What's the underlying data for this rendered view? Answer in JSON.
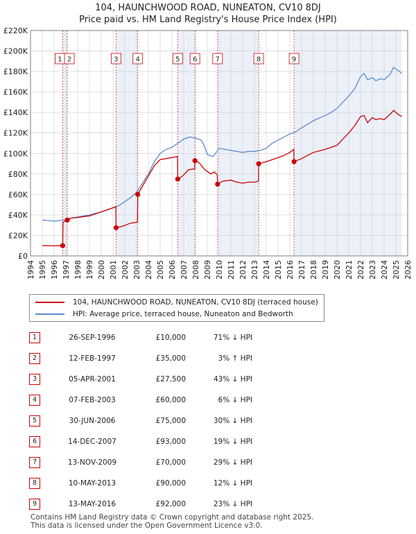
{
  "title": "104, HAUNCHWOOD ROAD, NUNEATON, CV10 8DJ",
  "subtitle": "Price paid vs. HM Land Registry's House Price Index (HPI)",
  "colors": {
    "red": "#cc0000",
    "blue": "#5b8bd0",
    "band": "#dde6f5",
    "grid": "#cccccc"
  },
  "chart_data": {
    "type": "line",
    "xlim": [
      1994,
      2026
    ],
    "ylim": [
      0,
      220000
    ],
    "x_ticks": [
      "1994",
      "1995",
      "1996",
      "1997",
      "1998",
      "1999",
      "2000",
      "2001",
      "2002",
      "2003",
      "2004",
      "2005",
      "2006",
      "2007",
      "2008",
      "2009",
      "2010",
      "2011",
      "2012",
      "2013",
      "2014",
      "2015",
      "2016",
      "2017",
      "2018",
      "2019",
      "2020",
      "2021",
      "2022",
      "2023",
      "2024",
      "2025",
      "2026"
    ],
    "y_ticks": [
      {
        "value": 0,
        "label": "£0"
      },
      {
        "value": 20000,
        "label": "£20K"
      },
      {
        "value": 40000,
        "label": "£40K"
      },
      {
        "value": 60000,
        "label": "£60K"
      },
      {
        "value": 80000,
        "label": "£80K"
      },
      {
        "value": 100000,
        "label": "£100K"
      },
      {
        "value": 120000,
        "label": "£120K"
      },
      {
        "value": 140000,
        "label": "£140K"
      },
      {
        "value": 160000,
        "label": "£160K"
      },
      {
        "value": 180000,
        "label": "£180K"
      },
      {
        "value": 200000,
        "label": "£200K"
      },
      {
        "value": 220000,
        "label": "£220K"
      }
    ],
    "shaded_ranges": [
      [
        1996.73,
        1997.12
      ],
      [
        2001.26,
        2003.1
      ],
      [
        2006.49,
        2007.95
      ],
      [
        2009.87,
        2013.36
      ],
      [
        2016.36,
        2025.5
      ]
    ],
    "series": [
      {
        "name": "104, HAUNCHWOOD ROAD, NUNEATON, CV10 8DJ (terraced house)",
        "color": "#cc0000",
        "points": [
          [
            1995,
            10000
          ],
          [
            1996,
            9800
          ],
          [
            1996.73,
            10000
          ],
          [
            1996.75,
            33000
          ],
          [
            1997.12,
            35000
          ],
          [
            1997.5,
            37000
          ],
          [
            1998,
            37500
          ],
          [
            1999,
            39000
          ],
          [
            2000,
            43000
          ],
          [
            2001,
            47000
          ],
          [
            2001.24,
            48000
          ],
          [
            2001.26,
            27500
          ],
          [
            2001.8,
            29000
          ],
          [
            2002.5,
            32000
          ],
          [
            2003.08,
            33000
          ],
          [
            2003.1,
            60000
          ],
          [
            2003.5,
            68000
          ],
          [
            2004,
            78000
          ],
          [
            2004.5,
            88000
          ],
          [
            2005,
            94000
          ],
          [
            2005.5,
            95000
          ],
          [
            2006,
            96000
          ],
          [
            2006.47,
            97000
          ],
          [
            2006.49,
            75000
          ],
          [
            2006.9,
            78000
          ],
          [
            2007.4,
            84000
          ],
          [
            2007.93,
            85000
          ],
          [
            2007.95,
            93000
          ],
          [
            2008.3,
            91000
          ],
          [
            2008.8,
            84000
          ],
          [
            2009.3,
            80000
          ],
          [
            2009.6,
            82000
          ],
          [
            2009.85,
            79000
          ],
          [
            2009.87,
            70000
          ],
          [
            2010.3,
            73000
          ],
          [
            2011,
            74000
          ],
          [
            2011.5,
            72000
          ],
          [
            2012,
            71000
          ],
          [
            2012.5,
            72000
          ],
          [
            2013,
            72000
          ],
          [
            2013.34,
            73000
          ],
          [
            2013.36,
            90000
          ],
          [
            2014,
            92000
          ],
          [
            2015,
            96000
          ],
          [
            2015.5,
            98000
          ],
          [
            2016,
            101000
          ],
          [
            2016.34,
            104000
          ],
          [
            2016.36,
            92000
          ],
          [
            2017,
            95000
          ],
          [
            2018,
            101000
          ],
          [
            2019,
            104000
          ],
          [
            2020,
            108000
          ],
          [
            2020.5,
            114000
          ],
          [
            2021,
            120000
          ],
          [
            2021.5,
            127000
          ],
          [
            2022,
            136000
          ],
          [
            2022.3,
            137000
          ],
          [
            2022.6,
            130000
          ],
          [
            2023,
            135000
          ],
          [
            2023.3,
            133000
          ],
          [
            2023.7,
            134000
          ],
          [
            2024,
            133000
          ],
          [
            2024.5,
            138000
          ],
          [
            2024.8,
            142000
          ],
          [
            2025.2,
            138000
          ],
          [
            2025.5,
            136000
          ]
        ]
      },
      {
        "name": "HPI: Average price, terraced house, Nuneaton and Bedworth",
        "color": "#5b8bd0",
        "points": [
          [
            1995,
            35000
          ],
          [
            1995.5,
            34500
          ],
          [
            1996,
            34000
          ],
          [
            1996.5,
            34500
          ],
          [
            1997,
            35500
          ],
          [
            1997.5,
            37000
          ],
          [
            1998,
            38000
          ],
          [
            1999,
            40000
          ],
          [
            2000,
            43000
          ],
          [
            2001,
            47000
          ],
          [
            2001.5,
            49000
          ],
          [
            2002,
            53000
          ],
          [
            2002.5,
            57000
          ],
          [
            2003,
            62000
          ],
          [
            2003.5,
            71000
          ],
          [
            2004,
            80000
          ],
          [
            2004.5,
            92000
          ],
          [
            2005,
            100000
          ],
          [
            2005.5,
            104000
          ],
          [
            2006,
            106000
          ],
          [
            2006.5,
            110000
          ],
          [
            2007,
            114000
          ],
          [
            2007.5,
            116000
          ],
          [
            2008,
            115000
          ],
          [
            2008.5,
            113000
          ],
          [
            2008.8,
            106000
          ],
          [
            2009,
            99000
          ],
          [
            2009.5,
            97000
          ],
          [
            2010,
            105000
          ],
          [
            2010.5,
            104000
          ],
          [
            2011,
            103000
          ],
          [
            2011.5,
            102000
          ],
          [
            2012,
            101000
          ],
          [
            2012.5,
            102000
          ],
          [
            2013,
            102000
          ],
          [
            2013.5,
            103000
          ],
          [
            2014,
            105000
          ],
          [
            2014.5,
            110000
          ],
          [
            2015,
            113000
          ],
          [
            2015.5,
            116000
          ],
          [
            2016,
            119000
          ],
          [
            2016.5,
            121000
          ],
          [
            2017,
            125000
          ],
          [
            2018,
            132000
          ],
          [
            2019,
            137000
          ],
          [
            2019.5,
            140000
          ],
          [
            2020,
            144000
          ],
          [
            2020.5,
            150000
          ],
          [
            2021,
            156000
          ],
          [
            2021.5,
            163000
          ],
          [
            2022,
            175000
          ],
          [
            2022.3,
            178000
          ],
          [
            2022.6,
            172000
          ],
          [
            2023,
            174000
          ],
          [
            2023.3,
            171000
          ],
          [
            2023.7,
            173000
          ],
          [
            2024,
            172000
          ],
          [
            2024.5,
            177000
          ],
          [
            2024.8,
            184000
          ],
          [
            2025.2,
            181000
          ],
          [
            2025.5,
            178000
          ]
        ]
      }
    ],
    "transactions": [
      {
        "n": "1",
        "x": 1996.73,
        "price": 10000
      },
      {
        "n": "2",
        "x": 1997.12,
        "price": 35000
      },
      {
        "n": "3",
        "x": 2001.26,
        "price": 27500
      },
      {
        "n": "4",
        "x": 2003.1,
        "price": 60000
      },
      {
        "n": "5",
        "x": 2006.49,
        "price": 75000
      },
      {
        "n": "6",
        "x": 2007.95,
        "price": 93000
      },
      {
        "n": "7",
        "x": 2009.87,
        "price": 70000
      },
      {
        "n": "8",
        "x": 2013.36,
        "price": 90000
      },
      {
        "n": "9",
        "x": 2016.36,
        "price": 92000
      }
    ]
  },
  "legend": {
    "property": "104, HAUNCHWOOD ROAD, NUNEATON, CV10 8DJ (terraced house)",
    "hpi": "HPI: Average price, terraced house, Nuneaton and Bedworth"
  },
  "table": [
    {
      "n": "1",
      "date": "26-SEP-1996",
      "price": "£10,000",
      "hpi": "71% ↓ HPI"
    },
    {
      "n": "2",
      "date": "12-FEB-1997",
      "price": "£35,000",
      "hpi": "3% ↑ HPI"
    },
    {
      "n": "3",
      "date": "05-APR-2001",
      "price": "£27,500",
      "hpi": "43% ↓ HPI"
    },
    {
      "n": "4",
      "date": "07-FEB-2003",
      "price": "£60,000",
      "hpi": "6% ↓ HPI"
    },
    {
      "n": "5",
      "date": "30-JUN-2006",
      "price": "£75,000",
      "hpi": "30% ↓ HPI"
    },
    {
      "n": "6",
      "date": "14-DEC-2007",
      "price": "£93,000",
      "hpi": "19% ↓ HPI"
    },
    {
      "n": "7",
      "date": "13-NOV-2009",
      "price": "£70,000",
      "hpi": "29% ↓ HPI"
    },
    {
      "n": "8",
      "date": "10-MAY-2013",
      "price": "£90,000",
      "hpi": "12% ↓ HPI"
    },
    {
      "n": "9",
      "date": "13-MAY-2016",
      "price": "£92,000",
      "hpi": "23% ↓ HPI"
    }
  ],
  "footer": {
    "line1": "Contains HM Land Registry data © Crown copyright and database right 2025.",
    "line2": "This data is licensed under the Open Government Licence v3.0."
  }
}
